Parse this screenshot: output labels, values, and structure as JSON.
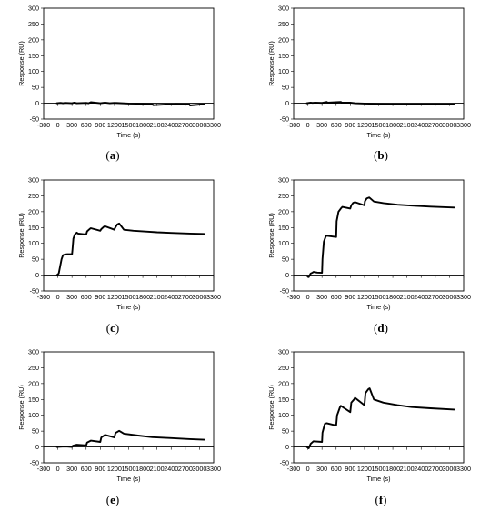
{
  "chart_data": [
    {
      "panel": "a",
      "caption_letter": "a",
      "type": "line",
      "xlabel": "Time (s)",
      "ylabel": "Response (RU)",
      "xlim": [
        -300,
        3300
      ],
      "ylim": [
        -50,
        300
      ],
      "xticks": [
        "-300",
        "0",
        "300",
        "600",
        "900",
        "1200",
        "1500",
        "1800",
        "2100",
        "2400",
        "2700",
        "3000",
        "3300"
      ],
      "yticks": [
        "-50",
        "0",
        "50",
        "100",
        "150",
        "200",
        "250",
        "300"
      ],
      "series": [
        {
          "x": [
            -20,
            60,
            110,
            150,
            300,
            350,
            400,
            600,
            650,
            700,
            900,
            1000,
            1100,
            1200,
            1500,
            2000,
            2020,
            2500,
            2780,
            2800,
            3100
          ],
          "y": [
            0,
            1,
            0,
            1,
            0,
            2,
            0,
            1,
            0,
            3,
            0,
            2,
            0,
            1,
            -1,
            -2,
            -6,
            -2,
            -3,
            -7,
            -3
          ]
        }
      ]
    },
    {
      "panel": "b",
      "caption_letter": "b",
      "type": "line",
      "xlabel": "Time (s)",
      "ylabel": "Response (RU)",
      "xlim": [
        -300,
        3300
      ],
      "ylim": [
        -50,
        300
      ],
      "xticks": [
        "-300",
        "0",
        "300",
        "600",
        "900",
        "1200",
        "1500",
        "1800",
        "2100",
        "2400",
        "2700",
        "3000",
        "3300"
      ],
      "yticks": [
        "-50",
        "0",
        "50",
        "100",
        "150",
        "200",
        "250",
        "300"
      ],
      "series": [
        {
          "x": [
            -20,
            60,
            100,
            150,
            300,
            400,
            420,
            600,
            700,
            720,
            900,
            1000,
            1200,
            1500,
            2000,
            2500,
            2800,
            3100
          ],
          "y": [
            0,
            2,
            1,
            2,
            1,
            4,
            2,
            3,
            4,
            2,
            2,
            0,
            -1,
            -2,
            -3,
            -3,
            -4,
            -4
          ]
        }
      ]
    },
    {
      "panel": "c",
      "caption_letter": "c",
      "type": "line",
      "xlabel": "Time (s)",
      "ylabel": "Response (RU)",
      "xlim": [
        -300,
        3300
      ],
      "ylim": [
        -50,
        300
      ],
      "xticks": [
        "-300",
        "0",
        "300",
        "600",
        "900",
        "1200",
        "1500",
        "1800",
        "2100",
        "2400",
        "2700",
        "3000",
        "3300"
      ],
      "yticks": [
        "-50",
        "0",
        "50",
        "100",
        "150",
        "200",
        "250",
        "300"
      ],
      "series": [
        {
          "x": [
            -20,
            20,
            80,
            110,
            150,
            200,
            300,
            310,
            330,
            360,
            400,
            430,
            600,
            620,
            680,
            700,
            900,
            920,
            980,
            1000,
            1200,
            1210,
            1260,
            1300,
            1400,
            1600,
            1900,
            2100,
            2400,
            2800,
            3100
          ],
          "y": [
            0,
            5,
            50,
            63,
            65,
            66,
            66,
            80,
            115,
            128,
            134,
            131,
            128,
            138,
            146,
            148,
            140,
            145,
            153,
            154,
            143,
            148,
            160,
            163,
            143,
            140,
            137,
            135,
            133,
            131,
            130
          ]
        }
      ]
    },
    {
      "panel": "d",
      "caption_letter": "d",
      "type": "line",
      "xlabel": "Time (s)",
      "ylabel": "Response (RU)",
      "xlim": [
        -300,
        3300
      ],
      "ylim": [
        -50,
        300
      ],
      "xticks": [
        "-300",
        "0",
        "300",
        "600",
        "900",
        "1200",
        "1500",
        "1800",
        "2100",
        "2400",
        "2700",
        "3000",
        "3300"
      ],
      "yticks": [
        "-50",
        "0",
        "50",
        "100",
        "150",
        "200",
        "250",
        "300"
      ],
      "series": [
        {
          "x": [
            -20,
            20,
            60,
            100,
            120,
            200,
            300,
            310,
            340,
            380,
            400,
            600,
            610,
            650,
            700,
            730,
            900,
            920,
            960,
            1000,
            1200,
            1210,
            1250,
            1300,
            1400,
            1600,
            1900,
            2200,
            2600,
            3100
          ],
          "y": [
            -2,
            -6,
            5,
            8,
            10,
            8,
            7,
            50,
            105,
            122,
            124,
            120,
            170,
            200,
            210,
            215,
            210,
            220,
            228,
            230,
            220,
            233,
            242,
            245,
            232,
            227,
            222,
            219,
            216,
            213
          ]
        }
      ]
    },
    {
      "panel": "e",
      "caption_letter": "e",
      "type": "line",
      "xlabel": "Time (s)",
      "ylabel": "Response (RU)",
      "xlim": [
        -300,
        3300
      ],
      "ylim": [
        -50,
        300
      ],
      "xticks": [
        "-300",
        "0",
        "300",
        "600",
        "900",
        "1200",
        "1500",
        "1800",
        "2100",
        "2400",
        "2700",
        "3000",
        "3300"
      ],
      "yticks": [
        "-50",
        "0",
        "50",
        "100",
        "150",
        "200",
        "250",
        "300"
      ],
      "series": [
        {
          "x": [
            -20,
            100,
            200,
            300,
            320,
            400,
            600,
            620,
            700,
            900,
            920,
            1000,
            1200,
            1220,
            1300,
            1400,
            1700,
            2000,
            2400,
            2800,
            3100
          ],
          "y": [
            0,
            1,
            1,
            0,
            4,
            7,
            5,
            14,
            20,
            16,
            30,
            38,
            30,
            44,
            51,
            42,
            36,
            31,
            28,
            25,
            23
          ]
        }
      ]
    },
    {
      "panel": "f",
      "caption_letter": "f",
      "type": "line",
      "xlabel": "Time (s)",
      "ylabel": "Response (RU)",
      "xlim": [
        -300,
        3300
      ],
      "ylim": [
        -50,
        300
      ],
      "xticks": [
        "-300",
        "0",
        "300",
        "600",
        "900",
        "1200",
        "1500",
        "1800",
        "2100",
        "2400",
        "2700",
        "3000",
        "3300"
      ],
      "yticks": [
        "-50",
        "0",
        "50",
        "100",
        "150",
        "200",
        "250",
        "300"
      ],
      "series": [
        {
          "x": [
            -20,
            20,
            60,
            120,
            300,
            310,
            360,
            400,
            600,
            620,
            680,
            700,
            900,
            920,
            980,
            1000,
            1200,
            1220,
            1280,
            1310,
            1400,
            1600,
            1900,
            2200,
            2600,
            3100
          ],
          "y": [
            0,
            -4,
            10,
            18,
            16,
            45,
            73,
            75,
            68,
            100,
            125,
            130,
            110,
            140,
            150,
            155,
            132,
            170,
            182,
            185,
            150,
            140,
            132,
            126,
            122,
            118
          ]
        }
      ]
    }
  ]
}
